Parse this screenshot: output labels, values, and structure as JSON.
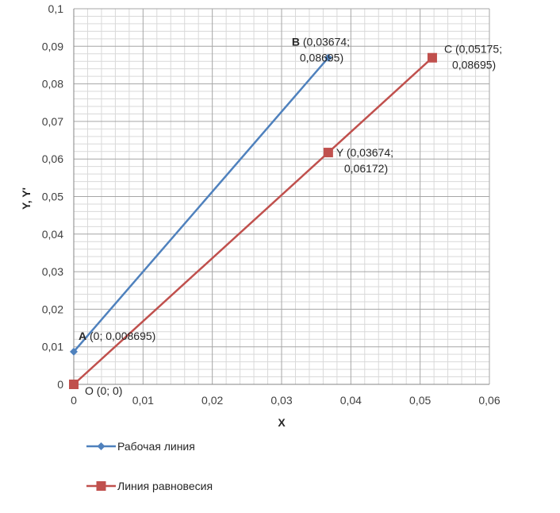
{
  "chart_data": {
    "type": "line",
    "xlabel": "X",
    "ylabel": "Y, Y'",
    "xlim": [
      0,
      0.06
    ],
    "ylim": [
      0,
      0.1
    ],
    "x_ticks": [
      "0",
      "0,01",
      "0,02",
      "0,03",
      "0,04",
      "0,05",
      "0,06"
    ],
    "y_ticks": [
      "0",
      "0,01",
      "0,02",
      "0,03",
      "0,04",
      "0,05",
      "0,06",
      "0,07",
      "0,08",
      "0,09",
      "0,1"
    ],
    "grid": true,
    "legend_position": "bottom-left",
    "series": [
      {
        "name": "Рабочая линия",
        "color": "#4F81BD",
        "marker": "diamond",
        "points": [
          {
            "x": 0,
            "y": 0.008695,
            "label_bold": "A",
            "label_rest": " (0; 0,008695)"
          },
          {
            "x": 0.03674,
            "y": 0.08695,
            "label_bold": "B",
            "label_rest": " (0,03674;",
            "label_line2": "0,08695)"
          }
        ]
      },
      {
        "name": "Линия равновесия",
        "color": "#C0504D",
        "marker": "square",
        "points": [
          {
            "x": 0,
            "y": 0,
            "label_bold": "",
            "label_rest": "O (0; 0)"
          },
          {
            "x": 0.03674,
            "y": 0.06172,
            "label_bold": "",
            "label_rest": "Y (0,03674;",
            "label_line2": "0,06172)"
          },
          {
            "x": 0.05175,
            "y": 0.08695,
            "label_bold": "",
            "label_rest": "C (0,05175;",
            "label_line2": "0,08695)"
          }
        ]
      }
    ]
  }
}
